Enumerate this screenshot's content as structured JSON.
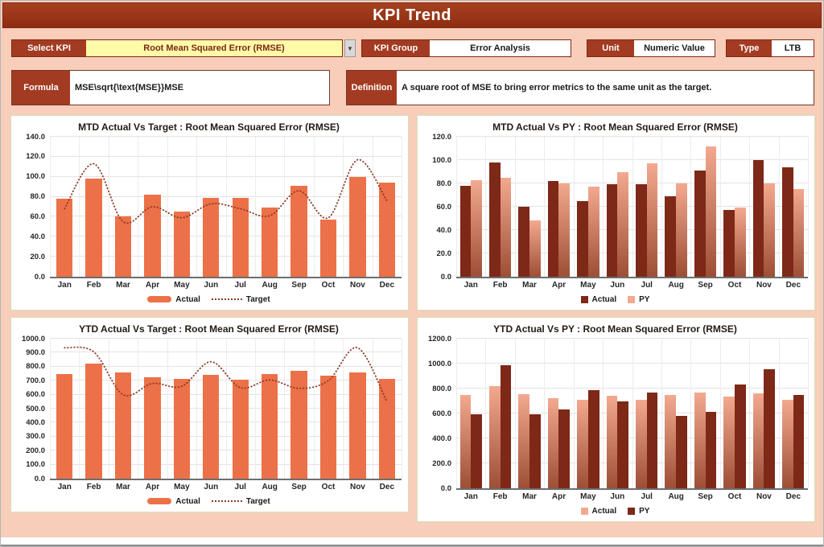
{
  "page": {
    "title": "KPI Trend"
  },
  "controls": {
    "select_kpi_label": "Select KPI",
    "select_kpi_value": "Root Mean Squared Error (RMSE)",
    "dropdown_arrow": "▼",
    "kpi_group_label": "KPI Group",
    "kpi_group_value": "Error Analysis",
    "unit_label": "Unit",
    "unit_value": "Numeric Value",
    "type_label": "Type",
    "type_value": "LTB",
    "formula_label": "Formula",
    "formula_value": "MSE\\sqrt{\\text{MSE}}MSE",
    "definition_label": "Definition",
    "definition_value": "A square root of MSE to bring error metrics to the same unit as the target."
  },
  "colors": {
    "page_pink": "#F8CDB9",
    "header_red": "#9D3318",
    "label_red": "#A33B22",
    "select_yellow": "#FDFAA8",
    "panel_border": "#E5D7BA",
    "orange": "#EC7148",
    "maroon": "#7E2817",
    "salmon_top": "#F3A98F",
    "salmon_bottom": "#9D4F36",
    "target_line": "#8B3A26",
    "grid": "#E3E3E3"
  },
  "chart_data": [
    {
      "type": "bar",
      "title": "MTD Actual Vs Target : Root Mean Squared Error (RMSE)",
      "categories": [
        "Jan",
        "Feb",
        "Mar",
        "Apr",
        "May",
        "Jun",
        "Jul",
        "Aug",
        "Sep",
        "Oct",
        "Nov",
        "Dec"
      ],
      "ylim": [
        0,
        140
      ],
      "ystep": 20,
      "grid": true,
      "legend_position": "bottom",
      "series": [
        {
          "name": "Actual",
          "kind": "bar",
          "color": "orange",
          "swatch": "pill",
          "values": [
            78,
            98,
            60,
            82,
            65,
            79,
            79,
            69,
            91,
            57,
            100,
            94
          ]
        },
        {
          "name": "Target",
          "kind": "line",
          "color": "target_line",
          "swatch": "dotted",
          "values": [
            68,
            113,
            55,
            70,
            59,
            73,
            68,
            61,
            86,
            59,
            117,
            76
          ]
        }
      ]
    },
    {
      "type": "bar",
      "title": "MTD Actual Vs PY : Root Mean Squared Error (RMSE)",
      "categories": [
        "Jan",
        "Feb",
        "Mar",
        "Apr",
        "May",
        "Jun",
        "Jul",
        "Aug",
        "Sep",
        "Oct",
        "Nov",
        "Dec"
      ],
      "ylim": [
        0,
        120
      ],
      "ystep": 20,
      "grid": true,
      "legend_position": "bottom",
      "series": [
        {
          "name": "Actual",
          "kind": "bar",
          "color": "maroon",
          "swatch": "square",
          "values": [
            78,
            98,
            60,
            82,
            65,
            79,
            79,
            69,
            91,
            57,
            100,
            94
          ]
        },
        {
          "name": "PY",
          "kind": "bar",
          "color": "salmon_gradient",
          "swatch": "square",
          "values": [
            83,
            85,
            48,
            80,
            77,
            90,
            97,
            80,
            112,
            59,
            80,
            75
          ]
        }
      ]
    },
    {
      "type": "bar",
      "title": "YTD Actual Vs Target : Root Mean Squared Error (RMSE)",
      "categories": [
        "Jan",
        "Feb",
        "Mar",
        "Apr",
        "May",
        "Jun",
        "Jul",
        "Aug",
        "Sep",
        "Oct",
        "Nov",
        "Dec"
      ],
      "ylim": [
        0,
        1000
      ],
      "ystep": 100,
      "grid": true,
      "legend_position": "bottom",
      "series": [
        {
          "name": "Actual",
          "kind": "bar",
          "color": "orange",
          "swatch": "pill",
          "values": [
            750,
            820,
            758,
            725,
            712,
            743,
            708,
            748,
            770,
            738,
            760,
            710
          ]
        },
        {
          "name": "Target",
          "kind": "line",
          "color": "target_line",
          "swatch": "dotted",
          "values": [
            935,
            905,
            600,
            680,
            660,
            835,
            650,
            705,
            645,
            700,
            935,
            550
          ]
        }
      ]
    },
    {
      "type": "bar",
      "title": "YTD Actual Vs PY : Root Mean Squared Error (RMSE)",
      "categories": [
        "Jan",
        "Feb",
        "Mar",
        "Apr",
        "May",
        "Jun",
        "Jul",
        "Aug",
        "Sep",
        "Oct",
        "Nov",
        "Dec"
      ],
      "ylim": [
        0,
        1200
      ],
      "ystep": 200,
      "grid": true,
      "legend_position": "bottom",
      "series": [
        {
          "name": "Actual",
          "kind": "bar",
          "color": "salmon_gradient",
          "swatch": "square",
          "values": [
            750,
            820,
            758,
            725,
            712,
            743,
            708,
            748,
            770,
            738,
            760,
            710
          ]
        },
        {
          "name": "PY",
          "kind": "bar",
          "color": "maroon",
          "swatch": "square",
          "values": [
            595,
            990,
            595,
            635,
            790,
            700,
            770,
            580,
            610,
            835,
            955,
            750
          ]
        }
      ]
    }
  ]
}
